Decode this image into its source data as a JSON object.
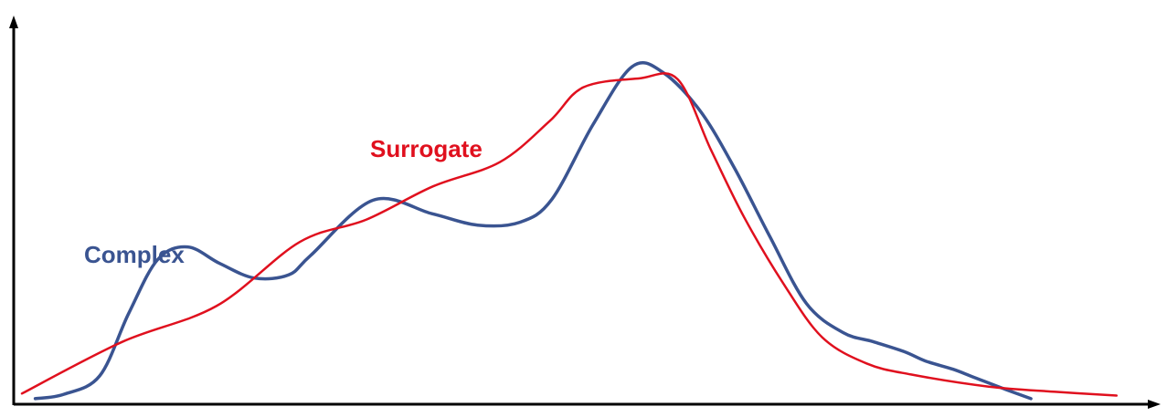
{
  "chart_data": {
    "type": "line",
    "title": "",
    "xlabel": "",
    "ylabel": "",
    "grid": false,
    "legend": "none",
    "xlim": [
      0,
      100
    ],
    "ylim": [
      0,
      100
    ],
    "series": [
      {
        "name": "Complex",
        "color": "#3a5491",
        "points": [
          [
            1.2,
            1.6
          ],
          [
            3.8,
            2.9
          ],
          [
            7.0,
            8.2
          ],
          [
            9.6,
            26.2
          ],
          [
            12.2,
            41.8
          ],
          [
            14.9,
            45.5
          ],
          [
            17.8,
            40.7
          ],
          [
            20.9,
            36.5
          ],
          [
            24.0,
            37.4
          ],
          [
            26.0,
            43.1
          ],
          [
            31.6,
            59.0
          ],
          [
            36.9,
            55.1
          ],
          [
            41.0,
            51.8
          ],
          [
            44.8,
            52.6
          ],
          [
            47.7,
            59.3
          ],
          [
            51.4,
            80.9
          ],
          [
            54.9,
            97.6
          ],
          [
            57.7,
            95.9
          ],
          [
            61.1,
            84.5
          ],
          [
            64.2,
            67.8
          ],
          [
            67.3,
            48.5
          ],
          [
            70.6,
            29.1
          ],
          [
            73.9,
            20.7
          ],
          [
            76.6,
            18.1
          ],
          [
            79.4,
            15.2
          ],
          [
            81.3,
            12.5
          ],
          [
            83.8,
            10.1
          ],
          [
            85.5,
            8.0
          ],
          [
            88.5,
            4.3
          ],
          [
            90.8,
            1.6
          ]
        ]
      },
      {
        "name": "Surrogate",
        "color": "#e0101e",
        "points": [
          [
            0.0,
            3.1
          ],
          [
            9.0,
            18.0
          ],
          [
            17.5,
            28.4
          ],
          [
            25.0,
            46.9
          ],
          [
            31.0,
            53.4
          ],
          [
            37.0,
            63.0
          ],
          [
            43.0,
            70.0
          ],
          [
            47.5,
            81.9
          ],
          [
            50.5,
            91.6
          ],
          [
            55.5,
            94.2
          ],
          [
            59.0,
            94.0
          ],
          [
            62.0,
            73.6
          ],
          [
            65.0,
            54.0
          ],
          [
            68.5,
            35.0
          ],
          [
            72.0,
            19.4
          ],
          [
            76.0,
            11.8
          ],
          [
            80.0,
            8.6
          ],
          [
            87.0,
            5.1
          ],
          [
            93.0,
            3.6
          ],
          [
            98.5,
            2.5
          ]
        ]
      }
    ],
    "annotations": [
      {
        "text": "Complex",
        "series": "Complex"
      },
      {
        "text": "Surrogate",
        "series": "Surrogate"
      }
    ]
  }
}
